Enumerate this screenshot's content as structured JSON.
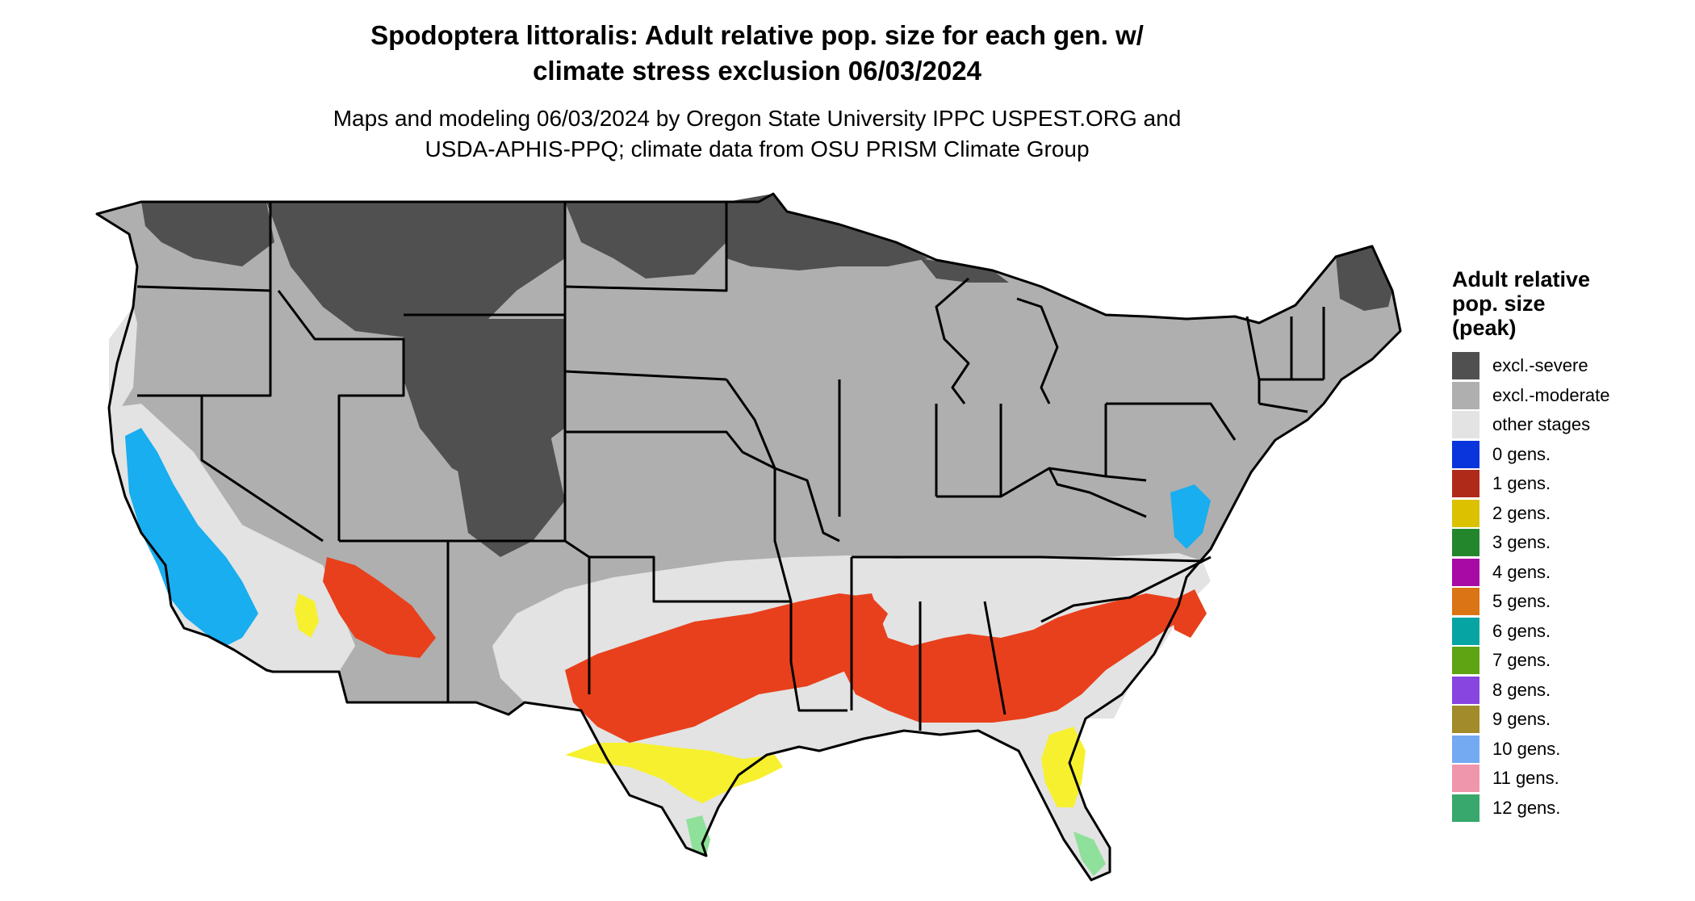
{
  "title": {
    "line1": "Spodoptera littoralis: Adult relative pop. size for each gen. w/",
    "line2": "climate stress exclusion 06/03/2024"
  },
  "subtitle": {
    "line1": "Maps and modeling 06/03/2024 by Oregon State University IPPC USPEST.ORG and",
    "line2": "USDA-APHIS-PPQ; climate data from OSU PRISM Climate Group"
  },
  "legend": {
    "title_lines": [
      "Adult relative",
      "pop. size",
      "(peak)"
    ],
    "items": [
      {
        "label": "excl.-severe",
        "color": "#505050"
      },
      {
        "label": "excl.-moderate",
        "color": "#afafaf"
      },
      {
        "label": "other stages",
        "color": "#e3e3e3"
      },
      {
        "label": "0 gens.",
        "color": "#0a35dd"
      },
      {
        "label": "1 gens.",
        "color": "#b02a1a"
      },
      {
        "label": "2 gens.",
        "color": "#dcc100"
      },
      {
        "label": "3 gens.",
        "color": "#24862c"
      },
      {
        "label": "4 gens.",
        "color": "#a70aa5"
      },
      {
        "label": "5 gens.",
        "color": "#db7414"
      },
      {
        "label": "6 gens.",
        "color": "#07a4a4"
      },
      {
        "label": "7 gens.",
        "color": "#5fa513"
      },
      {
        "label": "8 gens.",
        "color": "#8845e0"
      },
      {
        "label": "9 gens.",
        "color": "#a18b2a"
      },
      {
        "label": "10 gens.",
        "color": "#73aaf2"
      },
      {
        "label": "11 gens.",
        "color": "#f096ac"
      },
      {
        "label": "12 gens.",
        "color": "#38a86c"
      }
    ]
  },
  "map_colors": {
    "observed_red": "#e8401c",
    "observed_yellow": "#f7f02e",
    "observed_cyan": "#18aef0",
    "observed_green": "#8fe09a",
    "border": "#000000"
  }
}
